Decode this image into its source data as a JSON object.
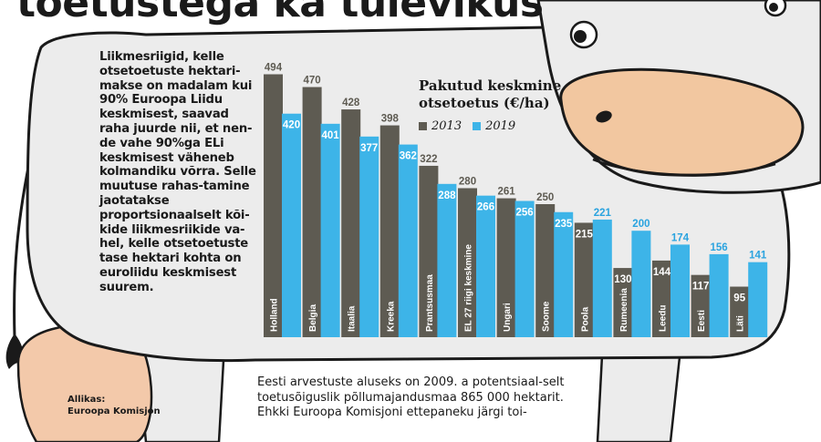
{
  "headline": "toetustega ka tulevikus",
  "intro_text": "Liikmesriigid, kelle otsetoetuste hektari-makse on madalam kui 90% Euroopa Liidu keskmisest, saavad raha juurde nii, et nen-de vahe 90%ga ELi keskmisest väheneb kolmandiku võrra. Selle muutuse rahas-tamine jaotatakse proportsionaalselt kõi-kide liikmesriikide va-hel, kelle otsetoetuste tase hektari kohta on euroliidu keskmisest suurem.",
  "source": {
    "label": "Allikas:",
    "name": "Euroopa Komisjon"
  },
  "footnote": {
    "line1": "Eesti arvestuste aluseks on 2009. a potentsiaal-selt toetusõiguslik põllumajandusmaa 865 000 hektarit.",
    "line2": "Ehkki Euroopa Komisjoni ettepaneku järgi toi-"
  },
  "colors": {
    "series_2013": "#5e5b52",
    "series_2019": "#3db4e8",
    "label_2013": "#5e5b52",
    "label_2019": "#2aa3df",
    "cow_body": "#ececec",
    "cow_outline": "#1a1a1a",
    "nose": "#f2c7a0",
    "udder": "#f3c9aa"
  },
  "chart_data": {
    "type": "bar",
    "title": "Pakutud keskmine otsetoetus (€/ha)",
    "categories": [
      "Holland",
      "Belgia",
      "Itaalia",
      "Kreeka",
      "Prantsusmaa",
      "EL 27 riigi keskmine",
      "Ungari",
      "Soome",
      "Poola",
      "Rumeenia",
      "Leedu",
      "Eesti",
      "Läti"
    ],
    "series": [
      {
        "name": "2013",
        "values": [
          494,
          470,
          428,
          398,
          322,
          280,
          261,
          250,
          215,
          130,
          144,
          117,
          95
        ]
      },
      {
        "name": "2019",
        "values": [
          420,
          401,
          377,
          362,
          288,
          266,
          256,
          235,
          221,
          200,
          174,
          156,
          141
        ]
      }
    ],
    "ylim": [
      0,
      500
    ],
    "legend": "top-right"
  }
}
